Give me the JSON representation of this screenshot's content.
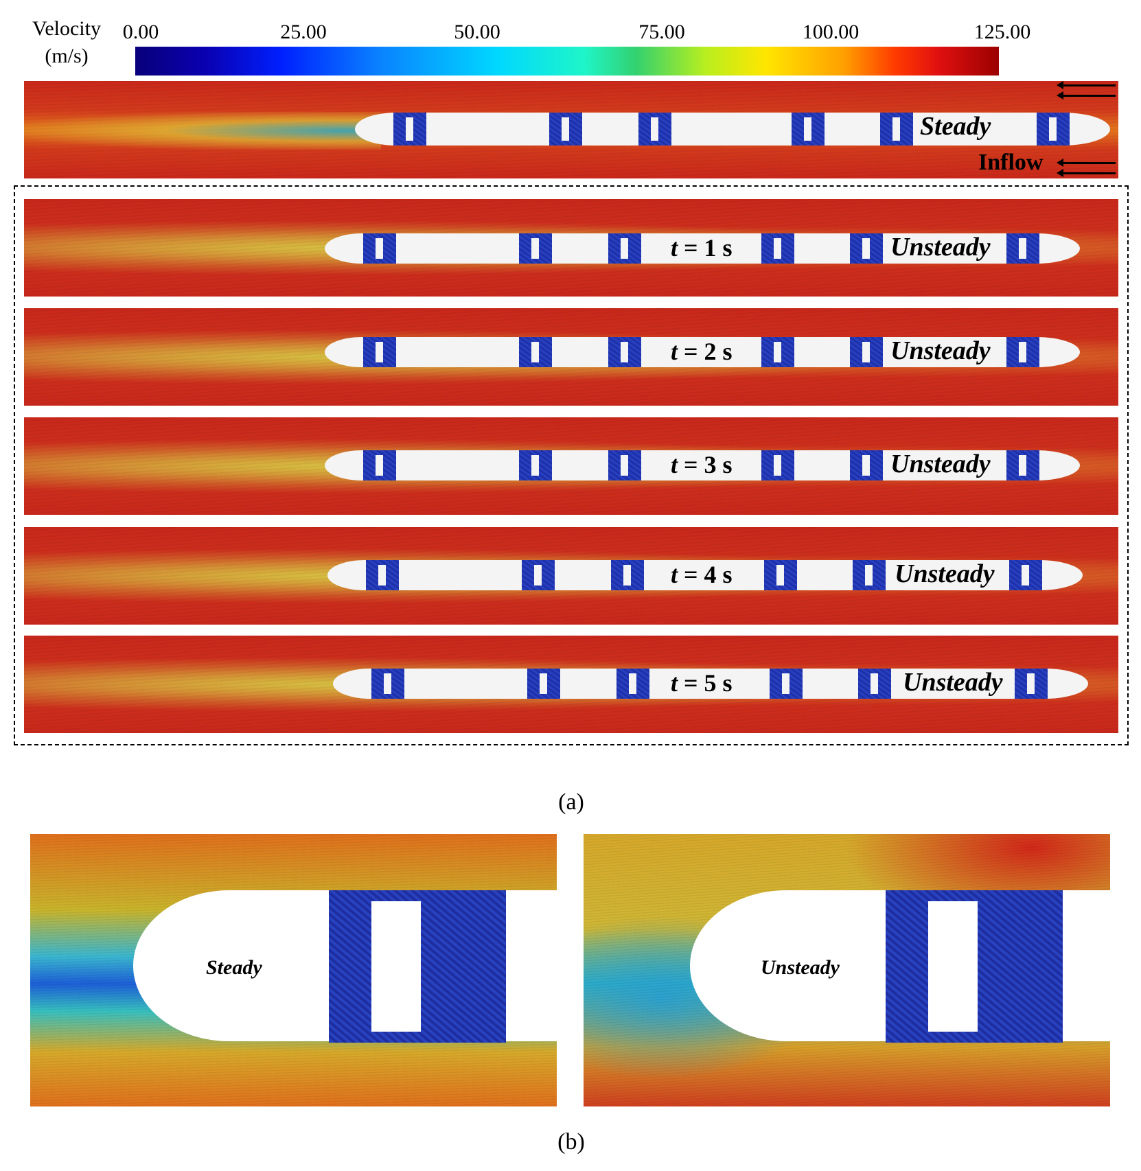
{
  "colorbar": {
    "title_line1": "Velocity",
    "title_line2": "(m/s)",
    "ticks": [
      "0.00",
      "25.00",
      "50.00",
      "75.00",
      "100.00",
      "125.00"
    ],
    "range": [
      0,
      125
    ]
  },
  "panel_a": {
    "caption": "(a)",
    "steady": {
      "label": "Steady",
      "inflow_label": "Inflow"
    },
    "unsteady_rows": [
      {
        "time_var": "t",
        "time_rest": " = 1 s",
        "label": "Unsteady"
      },
      {
        "time_var": "t",
        "time_rest": " = 2 s",
        "label": "Unsteady"
      },
      {
        "time_var": "t",
        "time_rest": " = 3 s",
        "label": "Unsteady"
      },
      {
        "time_var": "t",
        "time_rest": " = 4 s",
        "label": "Unsteady"
      },
      {
        "time_var": "t",
        "time_rest": " = 5 s",
        "label": "Unsteady"
      }
    ]
  },
  "panel_b": {
    "caption": "(b)",
    "left_label": "Steady",
    "right_label": "Unsteady"
  },
  "colors": {
    "high_velocity": "#c9281a",
    "low_velocity": "#0a00b0",
    "train_body": "#f4f4f4"
  }
}
